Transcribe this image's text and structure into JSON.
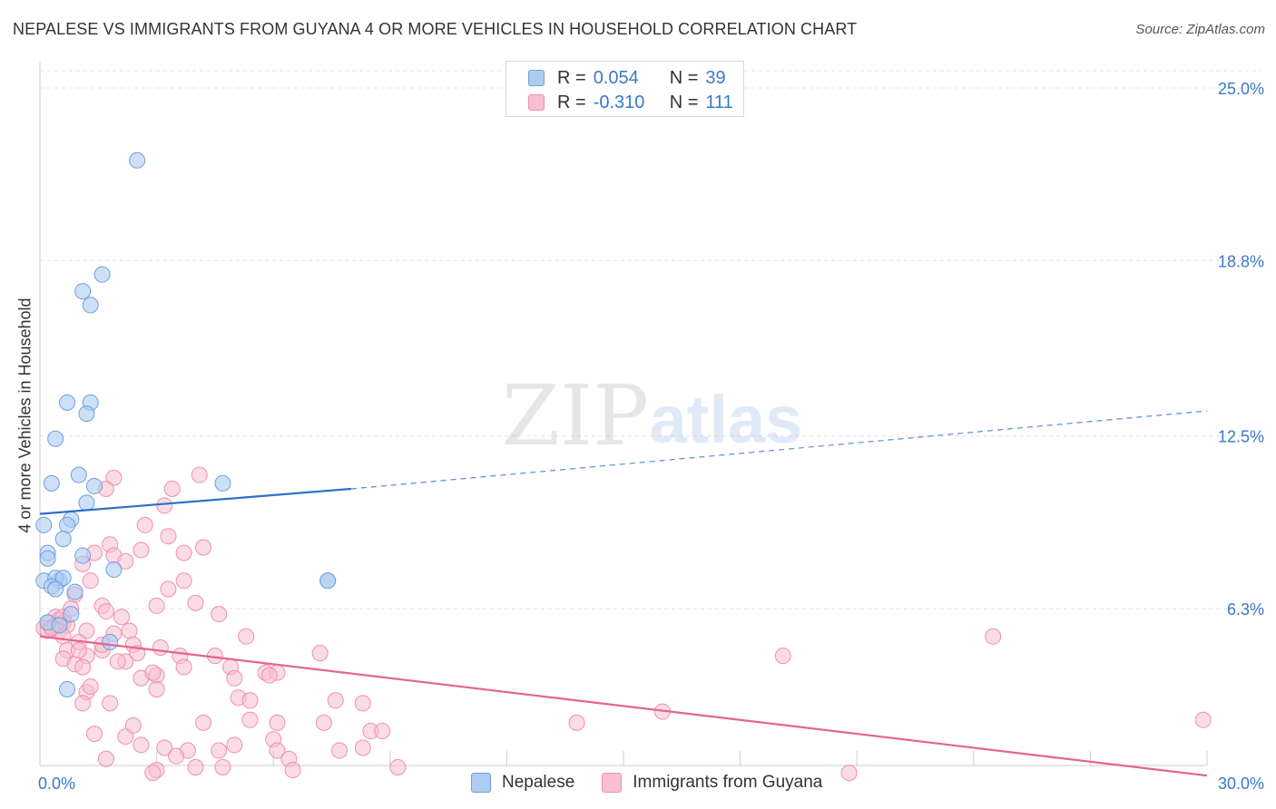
{
  "title": "NEPALESE VS IMMIGRANTS FROM GUYANA 4 OR MORE VEHICLES IN HOUSEHOLD CORRELATION CHART",
  "source": "Source: ZipAtlas.com",
  "watermark": {
    "zip": "ZIP",
    "atlas": "atlas"
  },
  "colors": {
    "nepalese_fill": "#aecbf2",
    "nepalese_stroke": "#6f9fdc",
    "nepalese_line": "#2f6fc8",
    "guyana_fill": "#f7bfd0",
    "guyana_stroke": "#ee8fb0",
    "guyana_line": "#e4648f",
    "axis_label": "#3a78c8",
    "grid": "#e4e4e4"
  },
  "legend_top": {
    "nepalese": {
      "r_label": "R =",
      "r_value": "0.054",
      "n_label": "N =",
      "n_value": "39"
    },
    "guyana": {
      "r_label": "R =",
      "r_value": "-0.310",
      "n_label": "N =",
      "n_value": "111"
    }
  },
  "legend_bottom": {
    "nepalese": "Nepalese",
    "guyana": "Immigrants from Guyana"
  },
  "chart_data": {
    "type": "scatter",
    "title": "NEPALESE VS IMMIGRANTS FROM GUYANA 4 OR MORE VEHICLES IN HOUSEHOLD CORRELATION CHART",
    "xlabel": "",
    "ylabel": "4 or more Vehicles in Household",
    "xlim": [
      0,
      30
    ],
    "ylim": [
      0,
      26
    ],
    "x_tick_labels": [
      {
        "value": 0,
        "label": "0.0%"
      },
      {
        "value": 30,
        "label": "30.0%"
      }
    ],
    "y_tick_labels": [
      {
        "value": 6.3,
        "label": "6.3%"
      },
      {
        "value": 12.5,
        "label": "12.5%"
      },
      {
        "value": 18.8,
        "label": "18.8%"
      },
      {
        "value": 25.0,
        "label": "25.0%"
      }
    ],
    "grid": true,
    "series": [
      {
        "name": "Nepalese",
        "R": 0.054,
        "N": 39,
        "trend": {
          "x0": 0,
          "y0": 9.7,
          "x1": 8,
          "y1": 10.6,
          "dashed_to_x": 30,
          "dashed_to_y": 13.4
        },
        "points": [
          [
            2.5,
            22.4
          ],
          [
            1.6,
            18.3
          ],
          [
            1.1,
            17.7
          ],
          [
            1.3,
            17.2
          ],
          [
            0.7,
            13.7
          ],
          [
            1.3,
            13.7
          ],
          [
            1.2,
            13.3
          ],
          [
            0.4,
            12.4
          ],
          [
            0.3,
            10.8
          ],
          [
            1.0,
            11.1
          ],
          [
            1.4,
            10.7
          ],
          [
            4.7,
            10.8
          ],
          [
            1.2,
            10.1
          ],
          [
            0.8,
            9.5
          ],
          [
            0.7,
            9.3
          ],
          [
            0.1,
            9.3
          ],
          [
            0.6,
            8.8
          ],
          [
            0.2,
            8.3
          ],
          [
            0.2,
            8.1
          ],
          [
            1.1,
            8.2
          ],
          [
            1.9,
            7.7
          ],
          [
            0.1,
            7.3
          ],
          [
            0.5,
            7.3
          ],
          [
            0.4,
            7.4
          ],
          [
            0.6,
            7.4
          ],
          [
            0.3,
            7.1
          ],
          [
            0.4,
            7.0
          ],
          [
            0.9,
            6.9
          ],
          [
            0.8,
            6.1
          ],
          [
            7.4,
            7.3
          ],
          [
            7.4,
            7.3
          ],
          [
            0.2,
            5.8
          ],
          [
            0.5,
            5.7
          ],
          [
            1.8,
            5.1
          ],
          [
            0.7,
            3.4
          ]
        ]
      },
      {
        "name": "Immigrants from Guyana",
        "R": -0.31,
        "N": 111,
        "trend": {
          "x0": 0,
          "y0": 5.3,
          "x1": 30,
          "y1": 0.3
        },
        "points": [
          [
            4.1,
            11.1
          ],
          [
            1.9,
            11.0
          ],
          [
            1.7,
            10.6
          ],
          [
            3.4,
            10.6
          ],
          [
            3.2,
            10.0
          ],
          [
            2.7,
            9.3
          ],
          [
            3.3,
            8.9
          ],
          [
            1.8,
            8.6
          ],
          [
            2.6,
            8.4
          ],
          [
            4.2,
            8.5
          ],
          [
            3.7,
            8.3
          ],
          [
            1.9,
            8.2
          ],
          [
            1.4,
            8.3
          ],
          [
            2.2,
            8.0
          ],
          [
            1.1,
            7.9
          ],
          [
            1.3,
            7.3
          ],
          [
            3.7,
            7.3
          ],
          [
            3.3,
            7.0
          ],
          [
            0.9,
            6.8
          ],
          [
            3.0,
            6.4
          ],
          [
            1.6,
            6.4
          ],
          [
            4.0,
            6.5
          ],
          [
            1.7,
            6.2
          ],
          [
            2.1,
            6.0
          ],
          [
            4.6,
            6.1
          ],
          [
            0.4,
            6.0
          ],
          [
            0.5,
            5.9
          ],
          [
            0.2,
            5.8
          ],
          [
            0.6,
            5.8
          ],
          [
            0.7,
            5.7
          ],
          [
            0.3,
            5.6
          ],
          [
            0.5,
            5.5
          ],
          [
            0.1,
            5.6
          ],
          [
            0.2,
            5.5
          ],
          [
            1.2,
            5.5
          ],
          [
            1.9,
            5.4
          ],
          [
            2.3,
            5.5
          ],
          [
            0.6,
            5.3
          ],
          [
            5.3,
            5.3
          ],
          [
            1.0,
            5.1
          ],
          [
            2.4,
            5.0
          ],
          [
            3.1,
            4.9
          ],
          [
            0.7,
            4.8
          ],
          [
            1.6,
            4.8
          ],
          [
            2.5,
            4.7
          ],
          [
            7.2,
            4.7
          ],
          [
            1.2,
            4.6
          ],
          [
            3.6,
            4.6
          ],
          [
            4.5,
            4.6
          ],
          [
            19.1,
            4.6
          ],
          [
            0.6,
            4.5
          ],
          [
            2.2,
            4.4
          ],
          [
            2.0,
            4.4
          ],
          [
            0.9,
            4.3
          ],
          [
            1.1,
            4.2
          ],
          [
            4.9,
            4.2
          ],
          [
            5.8,
            4.0
          ],
          [
            6.1,
            4.0
          ],
          [
            5.9,
            3.9
          ],
          [
            2.6,
            3.8
          ],
          [
            3.0,
            3.9
          ],
          [
            5.0,
            3.8
          ],
          [
            1.2,
            3.3
          ],
          [
            3.0,
            3.4
          ],
          [
            1.1,
            2.9
          ],
          [
            1.8,
            2.9
          ],
          [
            5.1,
            3.1
          ],
          [
            7.6,
            3.0
          ],
          [
            5.4,
            3.0
          ],
          [
            8.3,
            2.9
          ],
          [
            2.4,
            2.1
          ],
          [
            4.2,
            2.2
          ],
          [
            5.4,
            2.3
          ],
          [
            6.1,
            2.2
          ],
          [
            7.3,
            2.2
          ],
          [
            13.8,
            2.2
          ],
          [
            16.0,
            2.6
          ],
          [
            29.9,
            2.3
          ],
          [
            8.5,
            1.9
          ],
          [
            8.8,
            1.9
          ],
          [
            1.4,
            1.8
          ],
          [
            2.2,
            1.7
          ],
          [
            2.6,
            1.4
          ],
          [
            3.2,
            1.3
          ],
          [
            3.8,
            1.2
          ],
          [
            4.6,
            1.2
          ],
          [
            5.0,
            1.4
          ],
          [
            6.0,
            1.6
          ],
          [
            6.1,
            1.2
          ],
          [
            7.7,
            1.2
          ],
          [
            8.3,
            1.3
          ],
          [
            1.7,
            0.9
          ],
          [
            3.5,
            1.0
          ],
          [
            6.4,
            0.9
          ],
          [
            3.0,
            0.5
          ],
          [
            4.0,
            0.6
          ],
          [
            4.7,
            0.6
          ],
          [
            6.5,
            0.5
          ],
          [
            9.2,
            0.6
          ],
          [
            20.8,
            0.4
          ],
          [
            2.9,
            0.4
          ],
          [
            0.4,
            5.7
          ],
          [
            0.3,
            5.6
          ],
          [
            0.6,
            6.0
          ],
          [
            24.5,
            5.3
          ],
          [
            0.8,
            6.3
          ],
          [
            1.0,
            4.8
          ],
          [
            1.6,
            5.0
          ],
          [
            2.9,
            4.0
          ],
          [
            3.7,
            4.2
          ],
          [
            1.3,
            3.5
          ]
        ]
      }
    ]
  }
}
